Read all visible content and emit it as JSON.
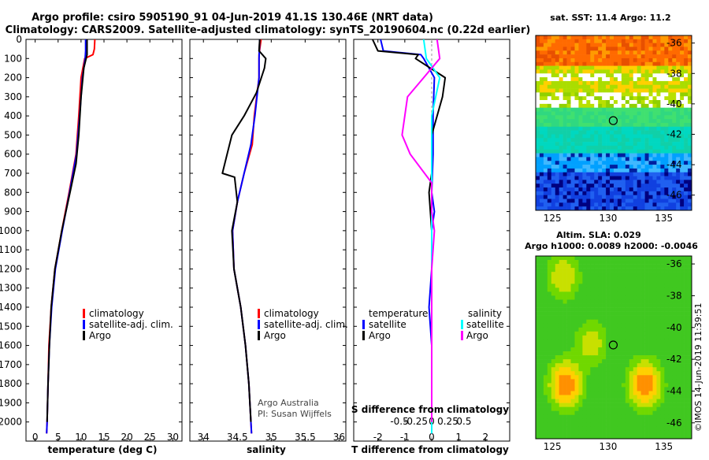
{
  "header": {
    "title_line1": "Argo profile: csiro 5905190_91 04-Jun-2019 41.1S 130.46E (NRT data)",
    "title_line2": "Climatology: CARS2009. Satellite-adjusted climatology: synTS_20190604.nc (0.22d earlier)"
  },
  "colors": {
    "climatology": "#ff0000",
    "satellite": "#0000ff",
    "argo": "#000000",
    "satellite_salinity": "#00ffff",
    "argo_salinity": "#ff00ff"
  },
  "chart_data": [
    {
      "type": "line",
      "name": "temperature-panel",
      "xlabel": "temperature (deg C)",
      "ylabel": "",
      "xlim": [
        -2,
        32
      ],
      "ylim": [
        2100,
        0
      ],
      "xticks": [
        0,
        5,
        10,
        15,
        20,
        25,
        30
      ],
      "yticks": [
        0,
        100,
        200,
        300,
        400,
        500,
        600,
        700,
        800,
        900,
        1000,
        1100,
        1200,
        1300,
        1400,
        1500,
        1600,
        1700,
        1800,
        1900,
        2000
      ],
      "legend": [
        "climatology",
        "satellite-adj. clim.",
        "Argo"
      ],
      "series": [
        {
          "name": "climatology",
          "color": "#ff0000",
          "points": [
            [
              13.0,
              0
            ],
            [
              12.9,
              50
            ],
            [
              12.6,
              80
            ],
            [
              10.8,
              100
            ],
            [
              10.0,
              200
            ],
            [
              9.5,
              400
            ],
            [
              8.9,
              600
            ],
            [
              7.4,
              800
            ],
            [
              5.8,
              1000
            ],
            [
              4.3,
              1200
            ],
            [
              3.5,
              1400
            ],
            [
              3.0,
              1600
            ],
            [
              2.8,
              1800
            ],
            [
              2.6,
              2000
            ],
            [
              2.5,
              2060
            ]
          ]
        },
        {
          "name": "satellite-adj. clim.",
          "color": "#0000ff",
          "points": [
            [
              11.0,
              0
            ],
            [
              11.0,
              60
            ],
            [
              10.9,
              100
            ],
            [
              10.3,
              200
            ],
            [
              9.7,
              400
            ],
            [
              9.0,
              600
            ],
            [
              7.5,
              800
            ],
            [
              5.9,
              1000
            ],
            [
              4.4,
              1200
            ],
            [
              3.6,
              1400
            ],
            [
              3.1,
              1600
            ],
            [
              2.8,
              1800
            ],
            [
              2.6,
              2000
            ],
            [
              2.5,
              2060
            ]
          ]
        },
        {
          "name": "Argo",
          "color": "#000000",
          "points": [
            [
              11.3,
              0
            ],
            [
              11.3,
              80
            ],
            [
              10.6,
              150
            ],
            [
              10.0,
              300
            ],
            [
              9.5,
              500
            ],
            [
              8.9,
              650
            ],
            [
              7.6,
              800
            ],
            [
              5.8,
              1000
            ],
            [
              4.3,
              1200
            ],
            [
              3.5,
              1400
            ],
            [
              3.1,
              1600
            ],
            [
              2.8,
              1800
            ],
            [
              2.6,
              2000
            ]
          ]
        }
      ]
    },
    {
      "type": "line",
      "name": "salinity-panel",
      "xlabel": "salinity",
      "ylabel": "",
      "xlim": [
        33.8,
        36.1
      ],
      "ylim": [
        2100,
        0
      ],
      "xticks": [
        34,
        34.5,
        35,
        35.5,
        36
      ],
      "legend": [
        "climatology",
        "satellite-adj. clim.",
        "Argo"
      ],
      "annotation": [
        "Argo Australia",
        "PI: Susan Wijffels"
      ],
      "series": [
        {
          "name": "climatology",
          "color": "#ff0000",
          "points": [
            [
              34.85,
              0
            ],
            [
              34.82,
              80
            ],
            [
              34.82,
              200
            ],
            [
              34.75,
              400
            ],
            [
              34.72,
              550
            ],
            [
              34.6,
              700
            ],
            [
              34.5,
              850
            ],
            [
              34.43,
              1000
            ],
            [
              34.45,
              1200
            ],
            [
              34.55,
              1400
            ],
            [
              34.62,
              1600
            ],
            [
              34.67,
              1800
            ],
            [
              34.7,
              2000
            ],
            [
              34.71,
              2060
            ]
          ]
        },
        {
          "name": "satellite-adj. clim.",
          "color": "#0000ff",
          "points": [
            [
              34.83,
              0
            ],
            [
              34.82,
              100
            ],
            [
              34.82,
              200
            ],
            [
              34.76,
              400
            ],
            [
              34.7,
              550
            ],
            [
              34.6,
              700
            ],
            [
              34.5,
              850
            ],
            [
              34.43,
              1000
            ],
            [
              34.45,
              1200
            ],
            [
              34.55,
              1400
            ],
            [
              34.62,
              1600
            ],
            [
              34.67,
              1800
            ],
            [
              34.7,
              2000
            ],
            [
              34.71,
              2060
            ]
          ]
        },
        {
          "name": "Argo",
          "color": "#000000",
          "points": [
            [
              34.83,
              0
            ],
            [
              34.82,
              60
            ],
            [
              34.92,
              100
            ],
            [
              34.9,
              150
            ],
            [
              34.78,
              280
            ],
            [
              34.6,
              400
            ],
            [
              34.42,
              500
            ],
            [
              34.35,
              600
            ],
            [
              34.28,
              700
            ],
            [
              34.46,
              720
            ],
            [
              34.5,
              850
            ],
            [
              34.42,
              1000
            ],
            [
              34.45,
              1200
            ],
            [
              34.55,
              1400
            ],
            [
              34.62,
              1600
            ],
            [
              34.67,
              1800
            ],
            [
              34.7,
              2000
            ]
          ]
        }
      ]
    },
    {
      "type": "line",
      "name": "difference-panel",
      "xlabel": "T difference from climatology",
      "xlabel_top": "S difference from climatology",
      "xlim": [
        -2.9,
        2.9
      ],
      "ylim": [
        2100,
        0
      ],
      "xticks": [
        -2,
        -1,
        0,
        1,
        2
      ],
      "xticks_salinity": [
        "-0.5",
        "-0.25",
        "0",
        "0.25",
        "0.5"
      ],
      "legend_temperature": {
        "title": "temperature",
        "entries": [
          "satellite",
          "Argo"
        ]
      },
      "legend_salinity": {
        "title": "salinity",
        "entries": [
          "satellite",
          "Argo"
        ]
      },
      "series": [
        {
          "name": "temperature satellite",
          "color": "#0000ff",
          "points": [
            [
              -1.9,
              0
            ],
            [
              -1.8,
              60
            ],
            [
              -0.4,
              80
            ],
            [
              -0.3,
              100
            ],
            [
              0.1,
              200
            ],
            [
              0.05,
              400
            ],
            [
              0.05,
              600
            ],
            [
              0.0,
              800
            ],
            [
              0.1,
              900
            ],
            [
              0.0,
              1000
            ],
            [
              0.0,
              1200
            ],
            [
              -0.1,
              1400
            ],
            [
              0.0,
              1600
            ],
            [
              0.0,
              2060
            ]
          ]
        },
        {
          "name": "temperature Argo",
          "color": "#000000",
          "points": [
            [
              -2.2,
              0
            ],
            [
              -2.0,
              60
            ],
            [
              -0.5,
              80
            ],
            [
              -0.6,
              100
            ],
            [
              0.5,
              200
            ],
            [
              0.4,
              300
            ],
            [
              0.0,
              500
            ],
            [
              0.0,
              700
            ],
            [
              -0.1,
              800
            ],
            [
              0.0,
              1000
            ],
            [
              0.0,
              1200
            ],
            [
              0.0,
              1600
            ],
            [
              0.0,
              2000
            ]
          ]
        },
        {
          "name": "salinity satellite",
          "color": "#00ffff",
          "points": [
            [
              -0.3,
              0
            ],
            [
              -0.2,
              100
            ],
            [
              0.3,
              200
            ],
            [
              0.0,
              400
            ],
            [
              0.0,
              600
            ],
            [
              0.0,
              800
            ],
            [
              0.0,
              1200
            ],
            [
              0.0,
              1600
            ],
            [
              0.0,
              2060
            ]
          ]
        },
        {
          "name": "salinity Argo",
          "color": "#ff00ff",
          "points": [
            [
              0.2,
              0
            ],
            [
              0.3,
              100
            ],
            [
              -0.3,
              200
            ],
            [
              -0.9,
              300
            ],
            [
              -1.1,
              500
            ],
            [
              -0.8,
              600
            ],
            [
              0.0,
              750
            ],
            [
              0.0,
              900
            ],
            [
              0.1,
              1000
            ],
            [
              0.0,
              1200
            ],
            [
              0.0,
              1600
            ],
            [
              0.0,
              2000
            ]
          ]
        }
      ]
    },
    {
      "type": "heatmap",
      "name": "sst-map",
      "title": "sat. SST: 11.4 Argo: 11.2",
      "xlim": [
        123.5,
        137.5
      ],
      "ylim": [
        -47,
        -35.5
      ],
      "xticks": [
        125,
        130,
        135
      ],
      "yticks": [
        -36,
        -38,
        -40,
        -42,
        -44,
        -46
      ],
      "marker": {
        "lon": 130.46,
        "lat": -41.1
      }
    },
    {
      "type": "heatmap",
      "name": "sla-map",
      "title": "Altim. SLA: 0.029",
      "subtitle": "Argo h1000: 0.0089 h2000: -0.0046",
      "xlim": [
        123.5,
        137.5
      ],
      "ylim": [
        -47,
        -35.5
      ],
      "xticks": [
        125,
        130,
        135
      ],
      "yticks": [
        -36,
        -38,
        -40,
        -42,
        -44,
        -46
      ],
      "marker": {
        "lon": 130.46,
        "lat": -41.1
      }
    }
  ],
  "footer": {
    "stamp": "©IMOS 14-Jun-2019 11:39:51"
  }
}
